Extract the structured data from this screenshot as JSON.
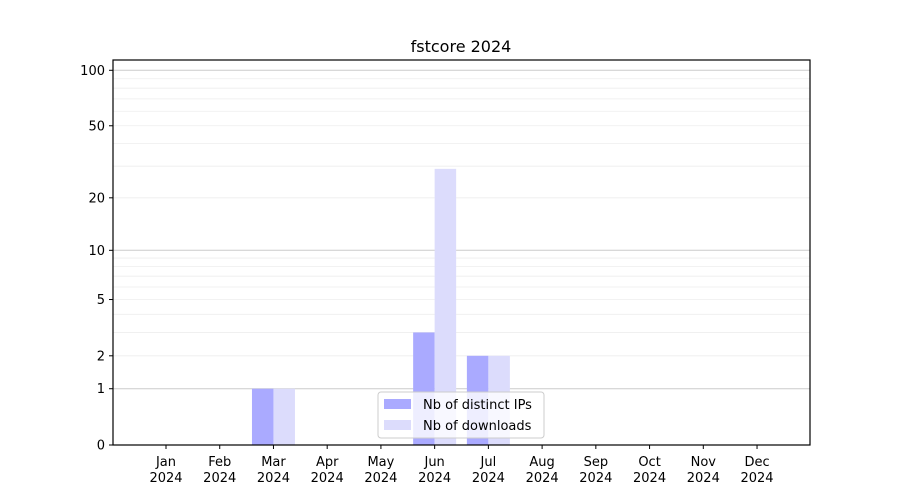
{
  "chart_data": {
    "type": "bar",
    "title": "fstcore 2024",
    "xlabel": "",
    "ylabel": "",
    "yscale": "log(1+y)",
    "ylim": [
      0,
      116
    ],
    "yticks": [
      0,
      1,
      2,
      5,
      10,
      20,
      50,
      100
    ],
    "ytick_labels": [
      "0",
      "1",
      "2",
      "5",
      "10",
      "20",
      "50",
      "100"
    ],
    "grid": true,
    "legend_placement": "lower-center",
    "categories": [
      "Jan\n2024",
      "Feb\n2024",
      "Mar\n2024",
      "Apr\n2024",
      "May\n2024",
      "Jun\n2024",
      "Jul\n2024",
      "Aug\n2024",
      "Sep\n2024",
      "Oct\n2024",
      "Nov\n2024",
      "Dec\n2024"
    ],
    "series": [
      {
        "name": "Nb of distinct IPs",
        "color": "#aaaaff",
        "values": [
          0,
          0,
          1,
          0,
          0,
          3,
          2,
          0,
          0,
          0,
          0,
          0
        ]
      },
      {
        "name": "Nb of downloads",
        "color": "#dcdcfc",
        "values": [
          0,
          0,
          1,
          0,
          0,
          29,
          2,
          0,
          0,
          0,
          0,
          0
        ]
      }
    ]
  }
}
